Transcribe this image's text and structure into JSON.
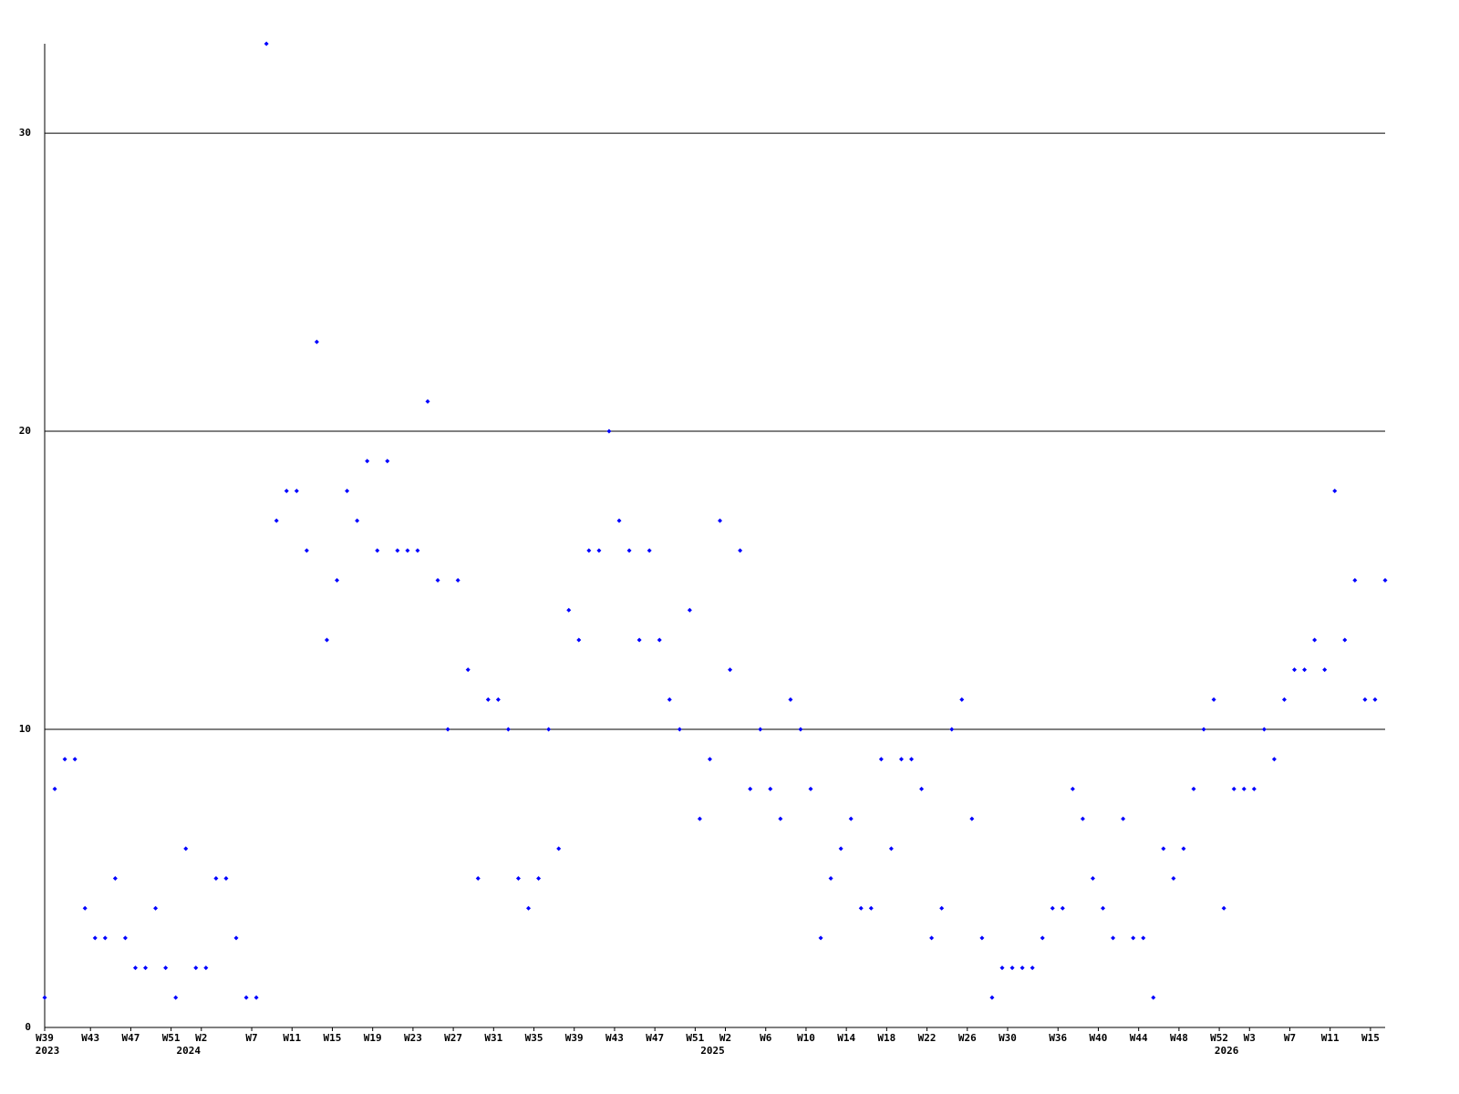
{
  "chart_data": {
    "type": "line",
    "categories": [
      "W39",
      null,
      null,
      null,
      "W43",
      null,
      null,
      null,
      "W47",
      null,
      null,
      null,
      "W51",
      null,
      null,
      "W2",
      null,
      null,
      null,
      null,
      "W7",
      null,
      null,
      null,
      "W11",
      null,
      null,
      null,
      "W15",
      null,
      null,
      null,
      "W19",
      null,
      null,
      null,
      "W23",
      null,
      null,
      null,
      "W27",
      null,
      null,
      null,
      "W31",
      null,
      null,
      null,
      "W35",
      null,
      null,
      null,
      "W39",
      null,
      null,
      null,
      "W43",
      null,
      null,
      null,
      "W47",
      null,
      null,
      null,
      "W51",
      null,
      null,
      "W2",
      null,
      null,
      null,
      "W6",
      null,
      null,
      null,
      "W10",
      null,
      null,
      null,
      "W14",
      null,
      null,
      null,
      "W18",
      null,
      null,
      null,
      "W22",
      null,
      null,
      null,
      "W26",
      null,
      null,
      null,
      "W30",
      null,
      null,
      null,
      null,
      "W36",
      null,
      null,
      null,
      "W40",
      null,
      null,
      null,
      "W44",
      null,
      null,
      null,
      "W48",
      null,
      null,
      null,
      "W52",
      null,
      null,
      "W3",
      null,
      null,
      null,
      "W7",
      null,
      null,
      null,
      "W11",
      null,
      null,
      null,
      "W15",
      null,
      null
    ],
    "year_labels": [
      "2023",
      null,
      null,
      null,
      null,
      null,
      null,
      null,
      null,
      null,
      null,
      null,
      null,
      null,
      "2024",
      null,
      null,
      null,
      null,
      null,
      null,
      null,
      null,
      null,
      null,
      null,
      null,
      null,
      null,
      null,
      null,
      null,
      null,
      null,
      null,
      null,
      null,
      null,
      null,
      null,
      null,
      null,
      null,
      null,
      null,
      null,
      null,
      null,
      null,
      null,
      null,
      null,
      null,
      null,
      null,
      null,
      null,
      null,
      null,
      null,
      null,
      null,
      null,
      null,
      null,
      null,
      "2025",
      null,
      null,
      null,
      null,
      null,
      null,
      null,
      null,
      null,
      null,
      null,
      null,
      null,
      null,
      null,
      null,
      null,
      null,
      null,
      null,
      null,
      null,
      null,
      null,
      null,
      null,
      null,
      null,
      null,
      null,
      null,
      null,
      null,
      null,
      null,
      null,
      null,
      null,
      null,
      null,
      null,
      null,
      null,
      null,
      null,
      null,
      null,
      null,
      null,
      null,
      "2026",
      null,
      null,
      null,
      null,
      null,
      null,
      null,
      null,
      null,
      null,
      null,
      null,
      null,
      null,
      null,
      null
    ],
    "series": [
      {
        "color": "#0000ff",
        "values": [
          1,
          8,
          9,
          9,
          4,
          3,
          3,
          5,
          3,
          2,
          2,
          4,
          2,
          1,
          6,
          2,
          2,
          5,
          5,
          3,
          1,
          1,
          33,
          17,
          18,
          18,
          16,
          23,
          13,
          15,
          18,
          17,
          19,
          16,
          19,
          16,
          16,
          16,
          21,
          15,
          10,
          15,
          12,
          5,
          11,
          11,
          10,
          5,
          4,
          5,
          10,
          6,
          14,
          13,
          16,
          16,
          20,
          17,
          16,
          13,
          16,
          13,
          11,
          10,
          14,
          7,
          9,
          17,
          12,
          16,
          8,
          10,
          8,
          7,
          11,
          10,
          8,
          3,
          5,
          6,
          7,
          4,
          4,
          9,
          6,
          9,
          9,
          8,
          3,
          4,
          10,
          11,
          7,
          3,
          1,
          2,
          2,
          2,
          2,
          3,
          4,
          4,
          8,
          7,
          5,
          4,
          3,
          7,
          3,
          3,
          1,
          6,
          5,
          6,
          8,
          10,
          11,
          4,
          8,
          8,
          8,
          10,
          9,
          11,
          12,
          12,
          13,
          12,
          18,
          13,
          15,
          11,
          11,
          15
        ]
      }
    ],
    "ylim": [
      0,
      33
    ],
    "yticks": [
      0,
      10,
      20,
      30
    ],
    "grid": true
  }
}
